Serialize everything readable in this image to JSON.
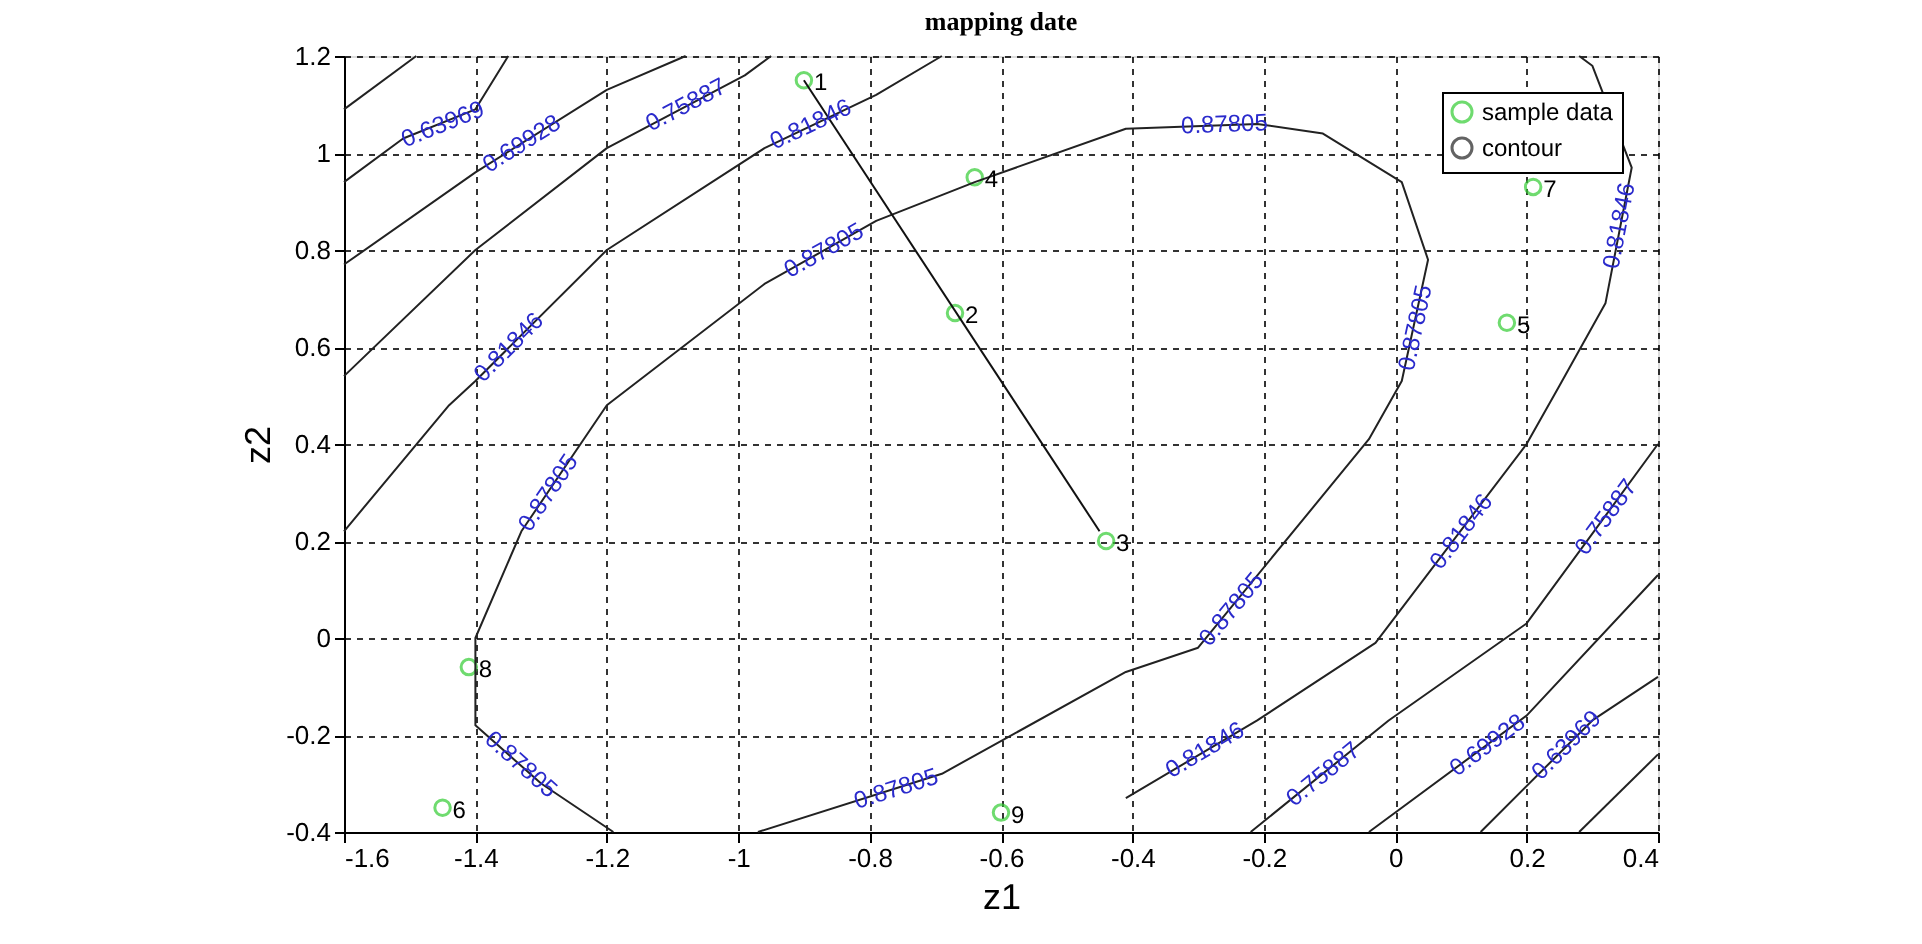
{
  "chart_data": {
    "type": "scatter",
    "title": "mapping date",
    "xlabel": "z1",
    "ylabel": "z2",
    "xlim": [
      -1.6,
      0.4
    ],
    "ylim": [
      -0.4,
      1.2
    ],
    "xticks": [
      -1.6,
      -1.4,
      -1.2,
      -1,
      -0.8,
      -0.6,
      -0.4,
      -0.2,
      0,
      0.2,
      0.4
    ],
    "yticks": [
      -0.4,
      -0.2,
      0,
      0.2,
      0.4,
      0.6,
      0.8,
      1,
      1.2
    ],
    "grid": true,
    "legend": "top right",
    "series": [
      {
        "name": "sample data",
        "color": "#33cc33",
        "x": [
          -0.9,
          -0.67,
          -0.44,
          -0.64,
          0.17,
          -1.45,
          0.21,
          -1.41,
          -0.6
        ],
        "values": [
          1.15,
          0.67,
          0.2,
          0.95,
          0.65,
          -0.35,
          0.93,
          -0.06,
          -0.36
        ]
      },
      {
        "name": "contour",
        "type": "line",
        "color": "#222222",
        "x": [
          -0.97,
          -0.69,
          -0.41,
          -0.3,
          -0.04,
          0.01,
          0.05,
          0.01,
          -0.11,
          -0.21,
          -0.41,
          -0.64,
          -0.79,
          -0.96,
          -1.2,
          -1.33,
          -1.4,
          -1.4,
          -1.3,
          -1.19
        ],
        "values": [
          -0.4,
          -0.28,
          -0.07,
          -0.02,
          0.41,
          0.53,
          0.78,
          0.94,
          1.04,
          1.06,
          1.05,
          0.94,
          0.86,
          0.73,
          0.48,
          0.22,
          0.0,
          -0.18,
          -0.3,
          -0.4
        ]
      },
      {
        "type": "line",
        "color": "#222222",
        "x": [
          -1.6,
          -1.49
        ],
        "values": [
          1.09,
          1.2
        ]
      },
      {
        "type": "line",
        "color": "#222222",
        "x": [
          -1.6,
          -1.51,
          -1.4,
          -1.35
        ],
        "values": [
          0.94,
          1.03,
          1.09,
          1.2
        ]
      },
      {
        "type": "line",
        "color": "#222222",
        "x": [
          -1.6,
          -1.4,
          -1.2,
          -1.08
        ],
        "values": [
          0.77,
          0.96,
          1.13,
          1.2
        ]
      },
      {
        "type": "line",
        "color": "#222222",
        "x": [
          -1.6,
          -1.4,
          -1.2,
          -0.99,
          -0.95
        ],
        "values": [
          0.54,
          0.8,
          1.01,
          1.16,
          1.2
        ]
      },
      {
        "type": "line",
        "color": "#222222",
        "x": [
          -1.6,
          -1.44,
          -1.4,
          -1.2,
          -0.96,
          -0.79,
          -0.69
        ],
        "values": [
          0.22,
          0.48,
          0.53,
          0.8,
          1.01,
          1.12,
          1.2
        ]
      },
      {
        "type": "line",
        "color": "#222222",
        "x": [
          -0.41,
          -0.21,
          -0.03,
          0.2,
          0.25,
          0.32,
          0.36,
          0.3,
          0.28
        ],
        "values": [
          -0.33,
          -0.17,
          -0.01,
          0.4,
          0.52,
          0.69,
          0.97,
          1.18,
          1.2
        ]
      },
      {
        "type": "line",
        "color": "#222222",
        "x": [
          -0.22,
          -0.01,
          0.2,
          0.4
        ],
        "values": [
          -0.4,
          -0.17,
          0.03,
          0.4
        ]
      },
      {
        "type": "line",
        "color": "#222222",
        "x": [
          -0.04,
          0.2,
          0.4
        ],
        "values": [
          -0.4,
          -0.16,
          0.13
        ]
      },
      {
        "type": "line",
        "color": "#222222",
        "x": [
          0.13,
          0.3,
          0.4
        ],
        "values": [
          -0.4,
          -0.17,
          -0.08
        ]
      },
      {
        "type": "line",
        "color": "#222222",
        "x": [
          0.28,
          0.4
        ],
        "values": [
          -0.4,
          -0.24
        ]
      },
      {
        "type": "line",
        "color": "#111111",
        "x": [
          -0.9,
          -0.45
        ],
        "values": [
          1.15,
          0.22
        ]
      }
    ],
    "annotations": [
      {
        "text": "1",
        "x": -0.9,
        "y": 1.15
      },
      {
        "text": "2",
        "x": -0.67,
        "y": 0.67
      },
      {
        "text": "3",
        "x": -0.44,
        "y": 0.2
      },
      {
        "text": "4",
        "x": -0.64,
        "y": 0.95
      },
      {
        "text": "5",
        "x": 0.17,
        "y": 0.65
      },
      {
        "text": "6",
        "x": -1.45,
        "y": -0.35
      },
      {
        "text": "7",
        "x": 0.21,
        "y": 0.93
      },
      {
        "text": "8",
        "x": -1.41,
        "y": -0.06
      },
      {
        "text": "9",
        "x": -0.6,
        "y": -0.36
      },
      {
        "text": "0.63969",
        "x": -1.45,
        "y": 1.06
      },
      {
        "text": "0.69928",
        "x": -1.33,
        "y": 1.02
      },
      {
        "text": "0.75887",
        "x": -1.08,
        "y": 1.1
      },
      {
        "text": "0.81846",
        "x": -0.89,
        "y": 1.06
      },
      {
        "text": "0.81846",
        "x": -1.35,
        "y": 0.6
      },
      {
        "text": "0.87805",
        "x": -0.87,
        "y": 0.8
      },
      {
        "text": "0.87805",
        "x": -0.26,
        "y": 1.06
      },
      {
        "text": "0.87805",
        "x": 0.03,
        "y": 0.64
      },
      {
        "text": "0.87805",
        "x": -1.29,
        "y": 0.3
      },
      {
        "text": "0.87805",
        "x": -1.33,
        "y": -0.26
      },
      {
        "text": "0.87805",
        "x": -0.76,
        "y": -0.31
      },
      {
        "text": "0.87805",
        "x": -0.25,
        "y": 0.06
      },
      {
        "text": "0.81846",
        "x": 0.34,
        "y": 0.85
      },
      {
        "text": "0.81846",
        "x": 0.1,
        "y": 0.22
      },
      {
        "text": "0.81846",
        "x": -0.29,
        "y": -0.23
      },
      {
        "text": "0.75887",
        "x": 0.32,
        "y": 0.25
      },
      {
        "text": "0.75887",
        "x": -0.11,
        "y": -0.28
      },
      {
        "text": "0.69928",
        "x": 0.14,
        "y": -0.22
      },
      {
        "text": "0.63969",
        "x": 0.26,
        "y": -0.22
      }
    ]
  }
}
